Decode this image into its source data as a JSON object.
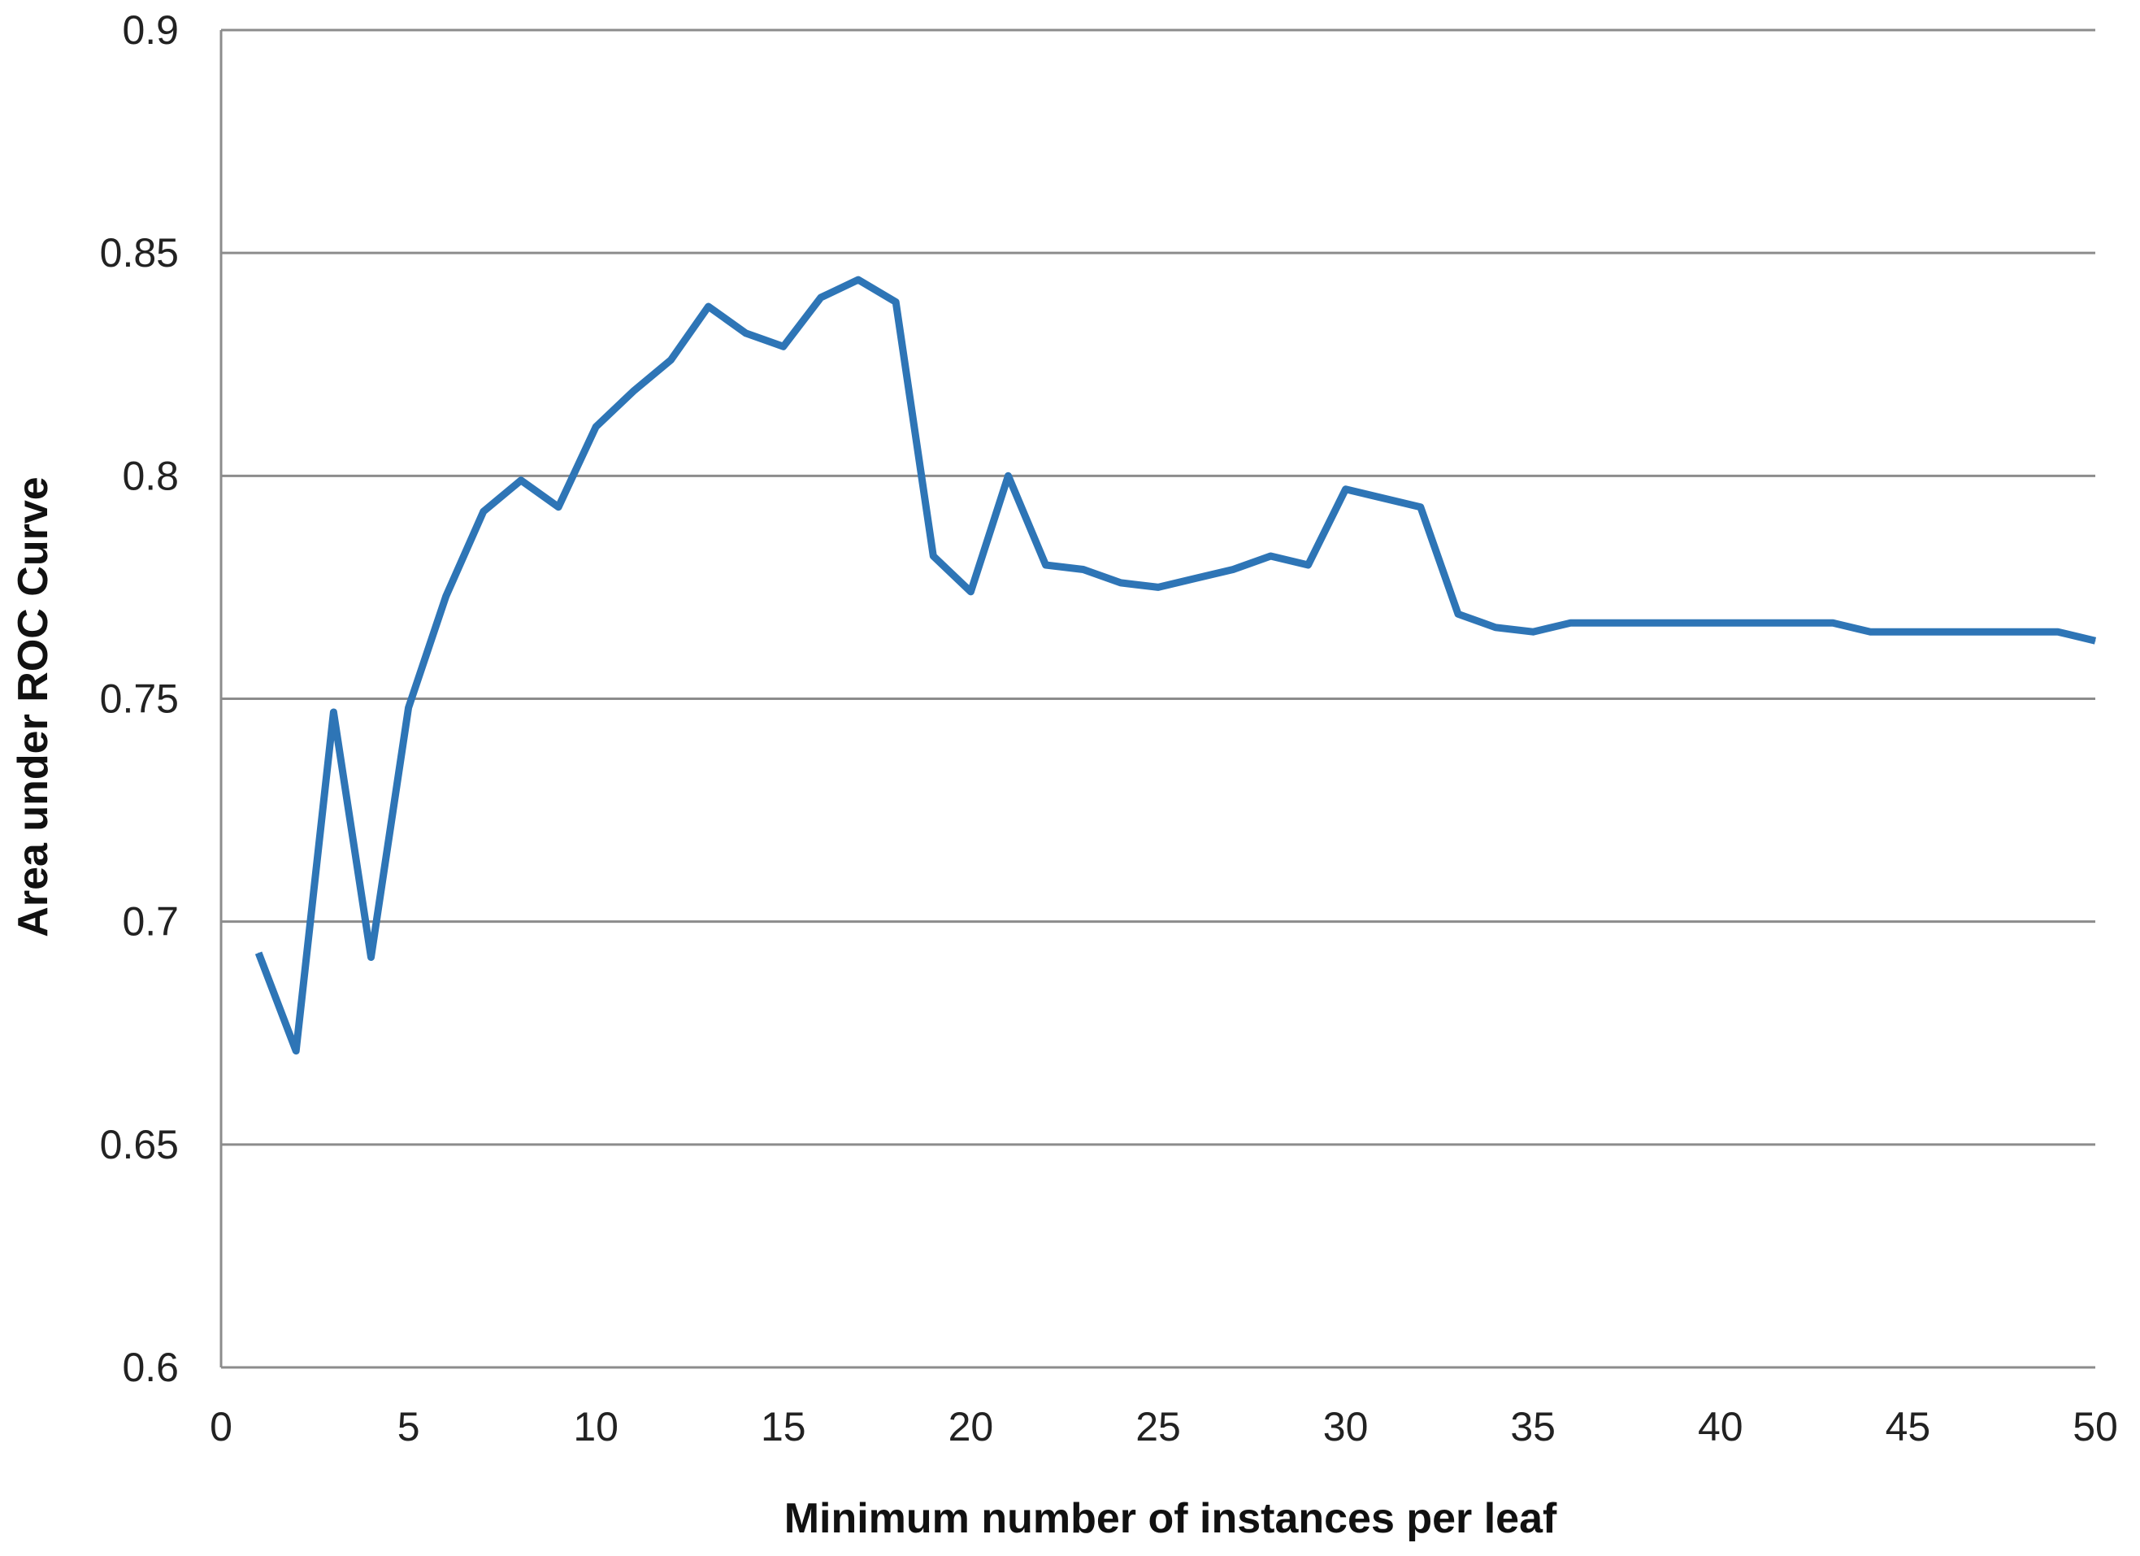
{
  "chart_data": {
    "type": "line",
    "title": "",
    "xlabel": "Minimum number of instances per leaf",
    "ylabel": "Area under ROC Curve",
    "xlim": [
      0,
      50
    ],
    "ylim": [
      0.6,
      0.9
    ],
    "x_ticks": [
      0,
      5,
      10,
      15,
      20,
      25,
      30,
      35,
      40,
      45,
      50
    ],
    "y_ticks": [
      0.6,
      0.65,
      0.7,
      0.75,
      0.8,
      0.85,
      0.9
    ],
    "x_tick_labels": [
      "0",
      "5",
      "10",
      "15",
      "20",
      "25",
      "30",
      "35",
      "40",
      "45",
      "50"
    ],
    "y_tick_labels": [
      "0.6",
      "0.65",
      "0.7",
      "0.75",
      "0.8",
      "0.85",
      "0.9"
    ],
    "grid": "horizontal",
    "legend": "none",
    "colors": {
      "line": "#2e75b6",
      "grid": "#8c8c8c",
      "axis": "#8c8c8c"
    },
    "series": [
      {
        "x": [
          1,
          2,
          3,
          4,
          5,
          6,
          7,
          8,
          9,
          10,
          11,
          12,
          13,
          14,
          15,
          16,
          17,
          18,
          19,
          20,
          21,
          22,
          23,
          24,
          25,
          26,
          27,
          28,
          29,
          30,
          31,
          32,
          33,
          34,
          35,
          36,
          37,
          38,
          39,
          40,
          41,
          42,
          43,
          44,
          45,
          46,
          47,
          48,
          49,
          50
        ],
        "values": [
          0.693,
          0.671,
          0.747,
          0.692,
          0.748,
          0.773,
          0.792,
          0.799,
          0.793,
          0.811,
          0.819,
          0.826,
          0.838,
          0.832,
          0.829,
          0.84,
          0.844,
          0.839,
          0.782,
          0.774,
          0.8,
          0.78,
          0.779,
          0.776,
          0.775,
          0.777,
          0.779,
          0.782,
          0.78,
          0.797,
          0.795,
          0.793,
          0.769,
          0.766,
          0.765,
          0.767,
          0.767,
          0.767,
          0.767,
          0.767,
          0.767,
          0.767,
          0.767,
          0.765,
          0.765,
          0.765,
          0.765,
          0.765,
          0.765,
          0.763
        ]
      }
    ]
  }
}
